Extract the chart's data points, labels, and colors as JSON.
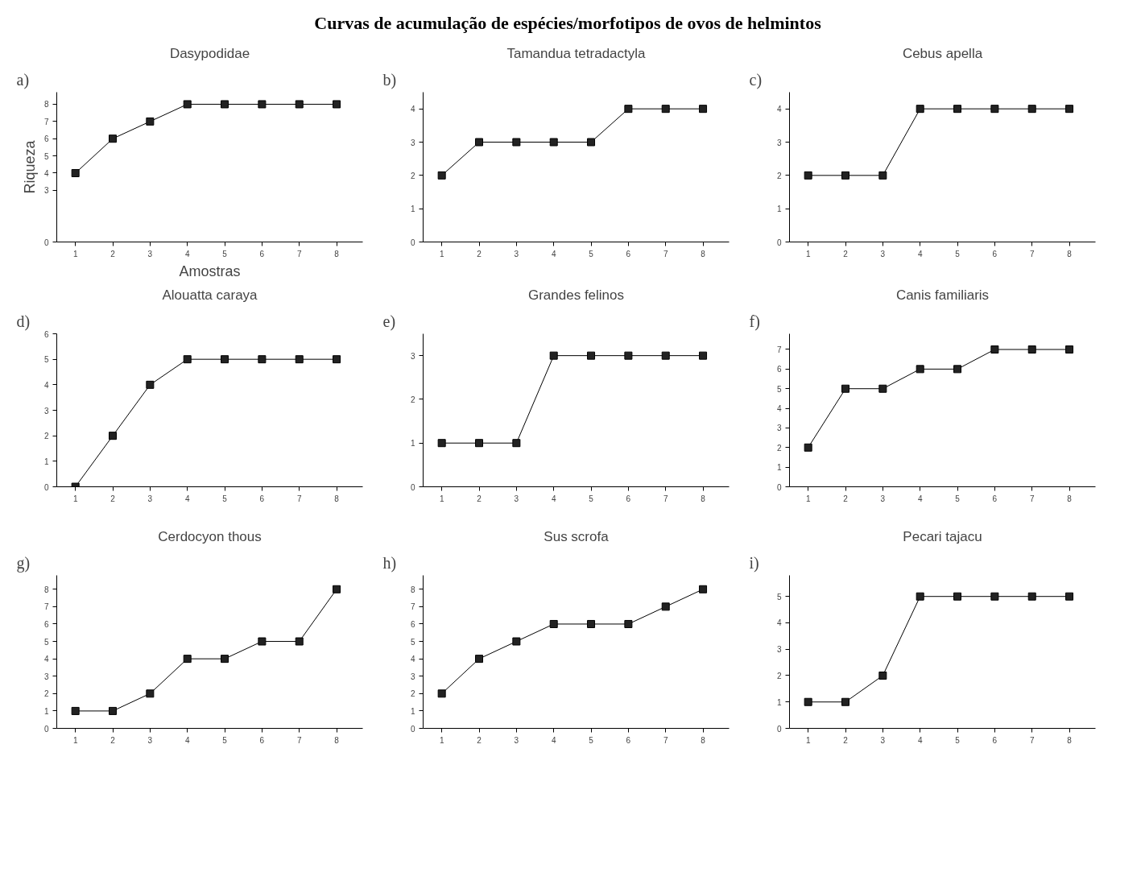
{
  "chart_data": [
    {
      "type": "other",
      "title": "Curvas de acumulação de espécies/morfotipos de ovos de helmintos"
    },
    {
      "type": "line",
      "title": "Dasypodidae",
      "annotations": [
        "a)"
      ],
      "xlabel": "Amostras",
      "ylabel": "Riqueza",
      "x": [
        1,
        2,
        3,
        4,
        5,
        6,
        7,
        8
      ],
      "values": [
        4,
        6,
        7,
        8,
        8,
        8,
        8,
        8
      ],
      "color": "#000000",
      "marker": "square",
      "xlim": [
        0.5,
        8.7
      ],
      "xticks": [
        1,
        2,
        3,
        4,
        5,
        6,
        7,
        8
      ],
      "ylim": [
        0,
        8.7
      ],
      "yticks": [
        0,
        3,
        4,
        5,
        6,
        7,
        8
      ]
    },
    {
      "type": "line",
      "title": "Tamandua tetradactyla",
      "annotations": [
        "b)"
      ],
      "x": [
        1,
        2,
        3,
        4,
        5,
        6,
        7,
        8
      ],
      "values": [
        2,
        3,
        3,
        3,
        3,
        4,
        4,
        4
      ],
      "color": "#000000",
      "marker": "square",
      "xlim": [
        0.5,
        8.7
      ],
      "xticks": [
        1,
        2,
        3,
        4,
        5,
        6,
        7,
        8
      ],
      "ylim": [
        0,
        4.5
      ],
      "yticks": [
        0,
        1,
        2,
        3,
        4
      ]
    },
    {
      "type": "line",
      "title": "Cebus apella",
      "annotations": [
        "c)"
      ],
      "x": [
        1,
        2,
        3,
        4,
        5,
        6,
        7,
        8
      ],
      "values": [
        2,
        2,
        2,
        4,
        4,
        4,
        4,
        4
      ],
      "color": "#000000",
      "marker": "square",
      "xlim": [
        0.5,
        8.7
      ],
      "xticks": [
        1,
        2,
        3,
        4,
        5,
        6,
        7,
        8
      ],
      "ylim": [
        0,
        4.5
      ],
      "yticks": [
        0,
        1,
        2,
        3,
        4
      ]
    },
    {
      "type": "line",
      "title": "Alouatta caraya",
      "annotations": [
        "d)"
      ],
      "x": [
        1,
        2,
        3,
        4,
        5,
        6,
        7,
        8
      ],
      "values": [
        0,
        2,
        4,
        5,
        5,
        5,
        5,
        5
      ],
      "color": "#000000",
      "marker": "square",
      "xlim": [
        0.5,
        8.7
      ],
      "xticks": [
        1,
        2,
        3,
        4,
        5,
        6,
        7,
        8
      ],
      "ylim": [
        0,
        6
      ],
      "yticks": [
        0,
        1,
        2,
        3,
        4,
        5,
        6
      ]
    },
    {
      "type": "line",
      "title": "Grandes felinos",
      "annotations": [
        "e)"
      ],
      "x": [
        1,
        2,
        3,
        4,
        5,
        6,
        7,
        8
      ],
      "values": [
        1,
        1,
        1,
        3,
        3,
        3,
        3,
        3
      ],
      "color": "#000000",
      "marker": "square",
      "xlim": [
        0.5,
        8.7
      ],
      "xticks": [
        1,
        2,
        3,
        4,
        5,
        6,
        7,
        8
      ],
      "ylim": [
        0,
        3.5
      ],
      "yticks": [
        0,
        1,
        2,
        3
      ]
    },
    {
      "type": "line",
      "title": "Canis familiaris",
      "annotations": [
        "f)"
      ],
      "x": [
        1,
        2,
        3,
        4,
        5,
        6,
        7,
        8
      ],
      "values": [
        2,
        5,
        5,
        6,
        6,
        7,
        7,
        7
      ],
      "color": "#000000",
      "marker": "square",
      "xlim": [
        0.5,
        8.7
      ],
      "xticks": [
        1,
        2,
        3,
        4,
        5,
        6,
        7,
        8
      ],
      "ylim": [
        0,
        7.8
      ],
      "yticks": [
        0,
        1,
        2,
        3,
        4,
        5,
        6,
        7
      ]
    },
    {
      "type": "line",
      "title": "Cerdocyon thous",
      "annotations": [
        "g)"
      ],
      "x": [
        1,
        2,
        3,
        4,
        5,
        6,
        7,
        8
      ],
      "values": [
        1,
        1,
        2,
        4,
        4,
        5,
        5,
        8
      ],
      "color": "#000000",
      "marker": "square",
      "xlim": [
        0.5,
        8.7
      ],
      "xticks": [
        1,
        2,
        3,
        4,
        5,
        6,
        7,
        8
      ],
      "ylim": [
        0,
        8.8
      ],
      "yticks": [
        0,
        1,
        2,
        3,
        4,
        5,
        6,
        7,
        8
      ]
    },
    {
      "type": "line",
      "title": "Sus scrofa",
      "annotations": [
        "h)"
      ],
      "x": [
        1,
        2,
        3,
        4,
        5,
        6,
        7,
        8
      ],
      "values": [
        2,
        4,
        5,
        6,
        6,
        6,
        7,
        8
      ],
      "color": "#000000",
      "marker": "square",
      "xlim": [
        0.5,
        8.7
      ],
      "xticks": [
        1,
        2,
        3,
        4,
        5,
        6,
        7,
        8
      ],
      "ylim": [
        0,
        8.8
      ],
      "yticks": [
        0,
        1,
        2,
        3,
        4,
        5,
        6,
        7,
        8
      ]
    },
    {
      "type": "line",
      "title": "Pecari tajacu",
      "annotations": [
        "i)"
      ],
      "x": [
        1,
        2,
        3,
        4,
        5,
        6,
        7,
        8
      ],
      "values": [
        1,
        1,
        2,
        5,
        5,
        5,
        5,
        5
      ],
      "color": "#000000",
      "marker": "square",
      "xlim": [
        0.5,
        8.7
      ],
      "xticks": [
        1,
        2,
        3,
        4,
        5,
        6,
        7,
        8
      ],
      "ylim": [
        0,
        5.8
      ],
      "yticks": [
        0,
        1,
        2,
        3,
        4,
        5
      ]
    }
  ]
}
